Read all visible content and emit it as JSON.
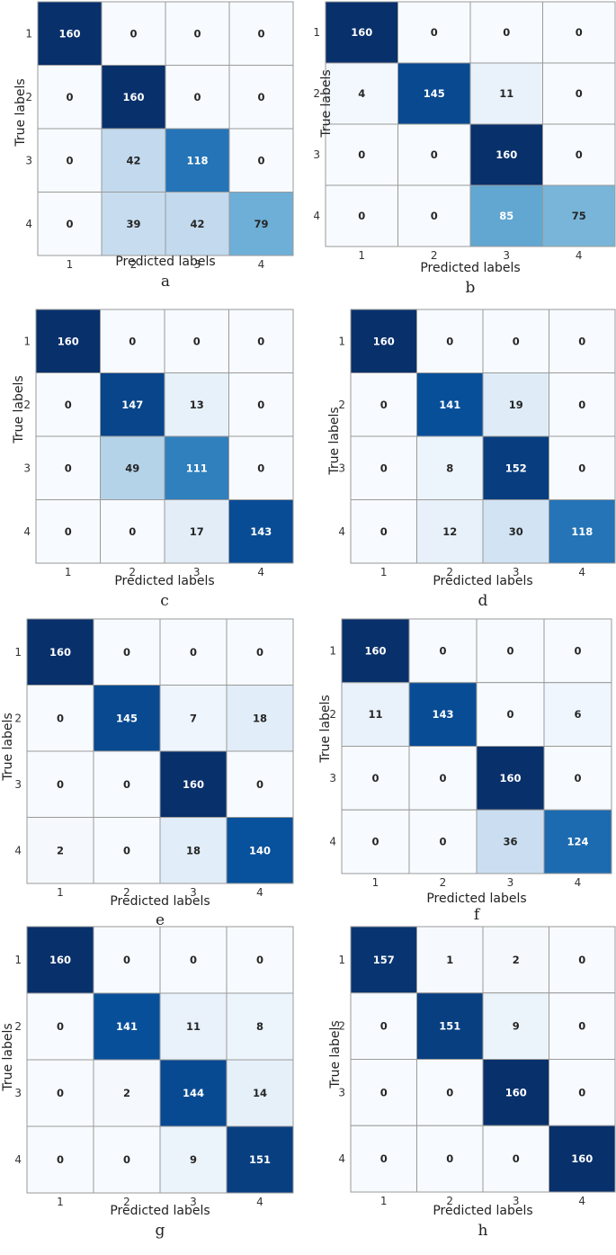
{
  "figure": {
    "colormap": "Blues",
    "vmax": 160,
    "cell_border_color": "#9a9a9a"
  },
  "chart_data": [
    {
      "type": "heatmap",
      "panel": "a",
      "xlabel": "Predicted  labels",
      "ylabel": "True  labels",
      "x_ticks": [
        "1",
        "2",
        "3",
        "4"
      ],
      "y_ticks": [
        "1",
        "2",
        "3",
        "4"
      ],
      "matrix": [
        [
          160,
          0,
          0,
          0
        ],
        [
          0,
          160,
          0,
          0
        ],
        [
          0,
          42,
          118,
          0
        ],
        [
          0,
          39,
          42,
          79
        ]
      ]
    },
    {
      "type": "heatmap",
      "panel": "b",
      "xlabel": "Predicted  labels",
      "ylabel": "True  labels",
      "x_ticks": [
        "1",
        "2",
        "3",
        "4"
      ],
      "y_ticks": [
        "1",
        "2",
        "3",
        "4"
      ],
      "matrix": [
        [
          160,
          0,
          0,
          0
        ],
        [
          4,
          145,
          11,
          0
        ],
        [
          0,
          0,
          160,
          0
        ],
        [
          0,
          0,
          85,
          75
        ]
      ]
    },
    {
      "type": "heatmap",
      "panel": "c",
      "xlabel": "Predicted  labels",
      "ylabel": "True  labels",
      "x_ticks": [
        "1",
        "2",
        "3",
        "4"
      ],
      "y_ticks": [
        "1",
        "2",
        "3",
        "4"
      ],
      "matrix": [
        [
          160,
          0,
          0,
          0
        ],
        [
          0,
          147,
          13,
          0
        ],
        [
          0,
          49,
          111,
          0
        ],
        [
          0,
          0,
          17,
          143
        ]
      ]
    },
    {
      "type": "heatmap",
      "panel": "d",
      "xlabel": "Predicted  labels",
      "ylabel": "True  labels",
      "x_ticks": [
        "1",
        "2",
        "3",
        "4"
      ],
      "y_ticks": [
        "1",
        "2",
        "3",
        "4"
      ],
      "matrix": [
        [
          160,
          0,
          0,
          0
        ],
        [
          0,
          141,
          19,
          0
        ],
        [
          0,
          8,
          152,
          0
        ],
        [
          0,
          12,
          30,
          118
        ]
      ]
    },
    {
      "type": "heatmap",
      "panel": "e",
      "xlabel": "Predicted  labels",
      "ylabel": "True  labels",
      "x_ticks": [
        "1",
        "2",
        "3",
        "4"
      ],
      "y_ticks": [
        "1",
        "2",
        "3",
        "4"
      ],
      "matrix": [
        [
          160,
          0,
          0,
          0
        ],
        [
          0,
          145,
          7,
          18
        ],
        [
          0,
          0,
          160,
          0
        ],
        [
          2,
          0,
          18,
          140
        ]
      ]
    },
    {
      "type": "heatmap",
      "panel": "f",
      "xlabel": "Predicted  labels",
      "ylabel": "True  labels",
      "x_ticks": [
        "1",
        "2",
        "3",
        "4"
      ],
      "y_ticks": [
        "1",
        "2",
        "3",
        "4"
      ],
      "matrix": [
        [
          160,
          0,
          0,
          0
        ],
        [
          11,
          143,
          0,
          6
        ],
        [
          0,
          0,
          160,
          0
        ],
        [
          0,
          0,
          36,
          124
        ]
      ]
    },
    {
      "type": "heatmap",
      "panel": "g",
      "xlabel": "Predicted  labels",
      "ylabel": "True  labels",
      "x_ticks": [
        "1",
        "2",
        "3",
        "4"
      ],
      "y_ticks": [
        "1",
        "2",
        "3",
        "4"
      ],
      "matrix": [
        [
          160,
          0,
          0,
          0
        ],
        [
          0,
          141,
          11,
          8
        ],
        [
          0,
          2,
          144,
          14
        ],
        [
          0,
          0,
          9,
          151
        ]
      ]
    },
    {
      "type": "heatmap",
      "panel": "h",
      "xlabel": "Predicted  labels",
      "ylabel": "True  labels",
      "x_ticks": [
        "1",
        "2",
        "3",
        "4"
      ],
      "y_ticks": [
        "1",
        "2",
        "3",
        "4"
      ],
      "matrix": [
        [
          157,
          1,
          2,
          0
        ],
        [
          0,
          151,
          9,
          0
        ],
        [
          0,
          0,
          160,
          0
        ],
        [
          0,
          0,
          0,
          160
        ]
      ]
    }
  ]
}
